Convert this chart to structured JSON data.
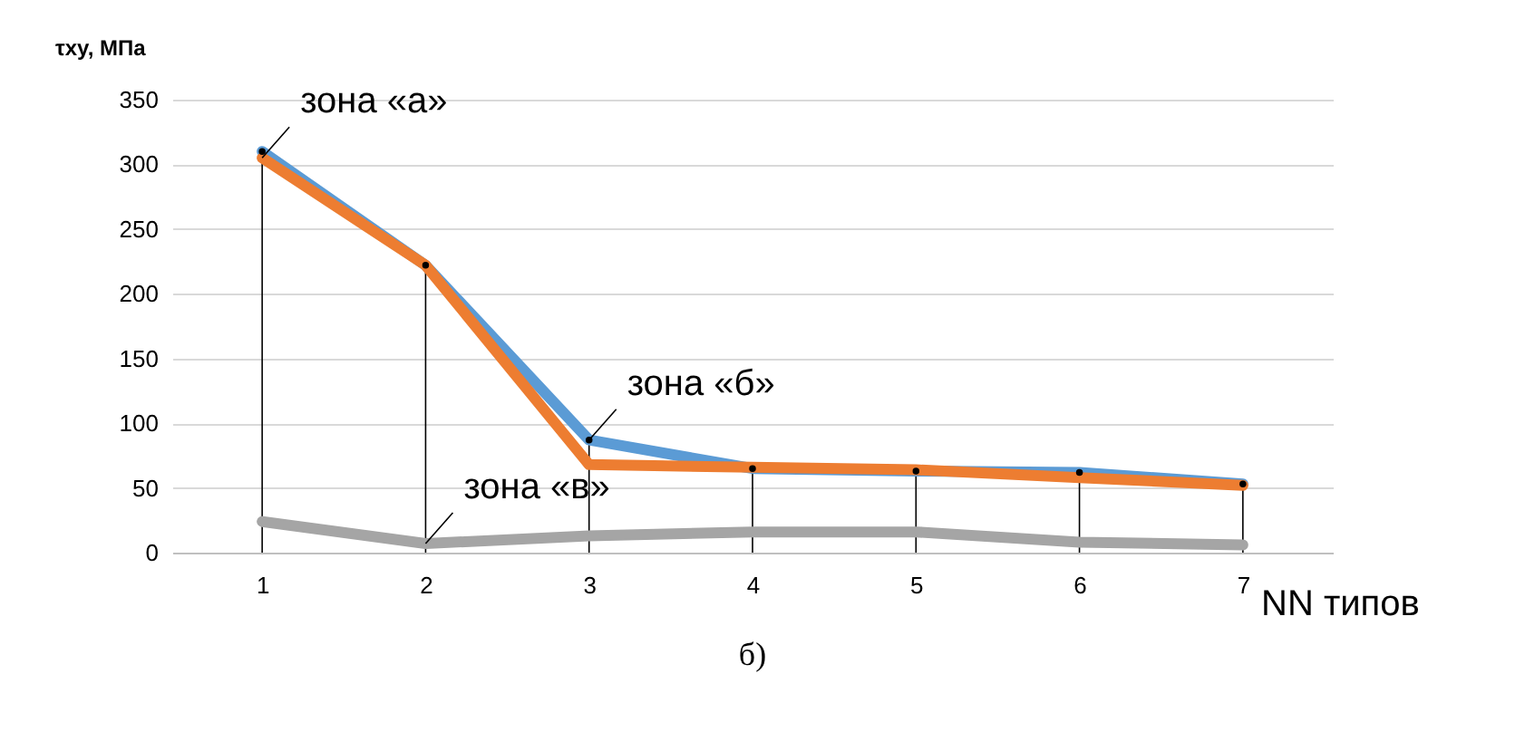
{
  "chart_data": {
    "type": "line",
    "ylabel": "τxy, МПа",
    "xlabel": "NN типов",
    "categories": [
      "1",
      "2",
      "3",
      "4",
      "5",
      "6",
      "7"
    ],
    "ylim": [
      0,
      350
    ],
    "yticks": [
      0,
      50,
      100,
      150,
      200,
      250,
      300,
      350
    ],
    "grid": "y",
    "marker": "none",
    "line_style": "solid",
    "series": [
      {
        "color": "#5b9bd5",
        "values": [
          310,
          222,
          87,
          65,
          63,
          62,
          53
        ]
      },
      {
        "color": "#ed7d31",
        "values": [
          305,
          222,
          68,
          66,
          64,
          58,
          52
        ]
      },
      {
        "color": "#a5a5a5",
        "values": [
          24,
          7,
          13,
          16,
          16,
          8,
          6
        ]
      },
      {
        "type": "lollipop",
        "color": "#000000",
        "values": [
          310,
          222,
          87,
          65,
          63,
          62,
          53
        ]
      }
    ],
    "annotations": [
      {
        "text": "зона «а»",
        "x": "1",
        "y": 305
      },
      {
        "text": "зона «б»",
        "x": "3",
        "y": 87
      },
      {
        "text": "зона «в»",
        "x": "2",
        "y": 7
      },
      "б)"
    ]
  }
}
